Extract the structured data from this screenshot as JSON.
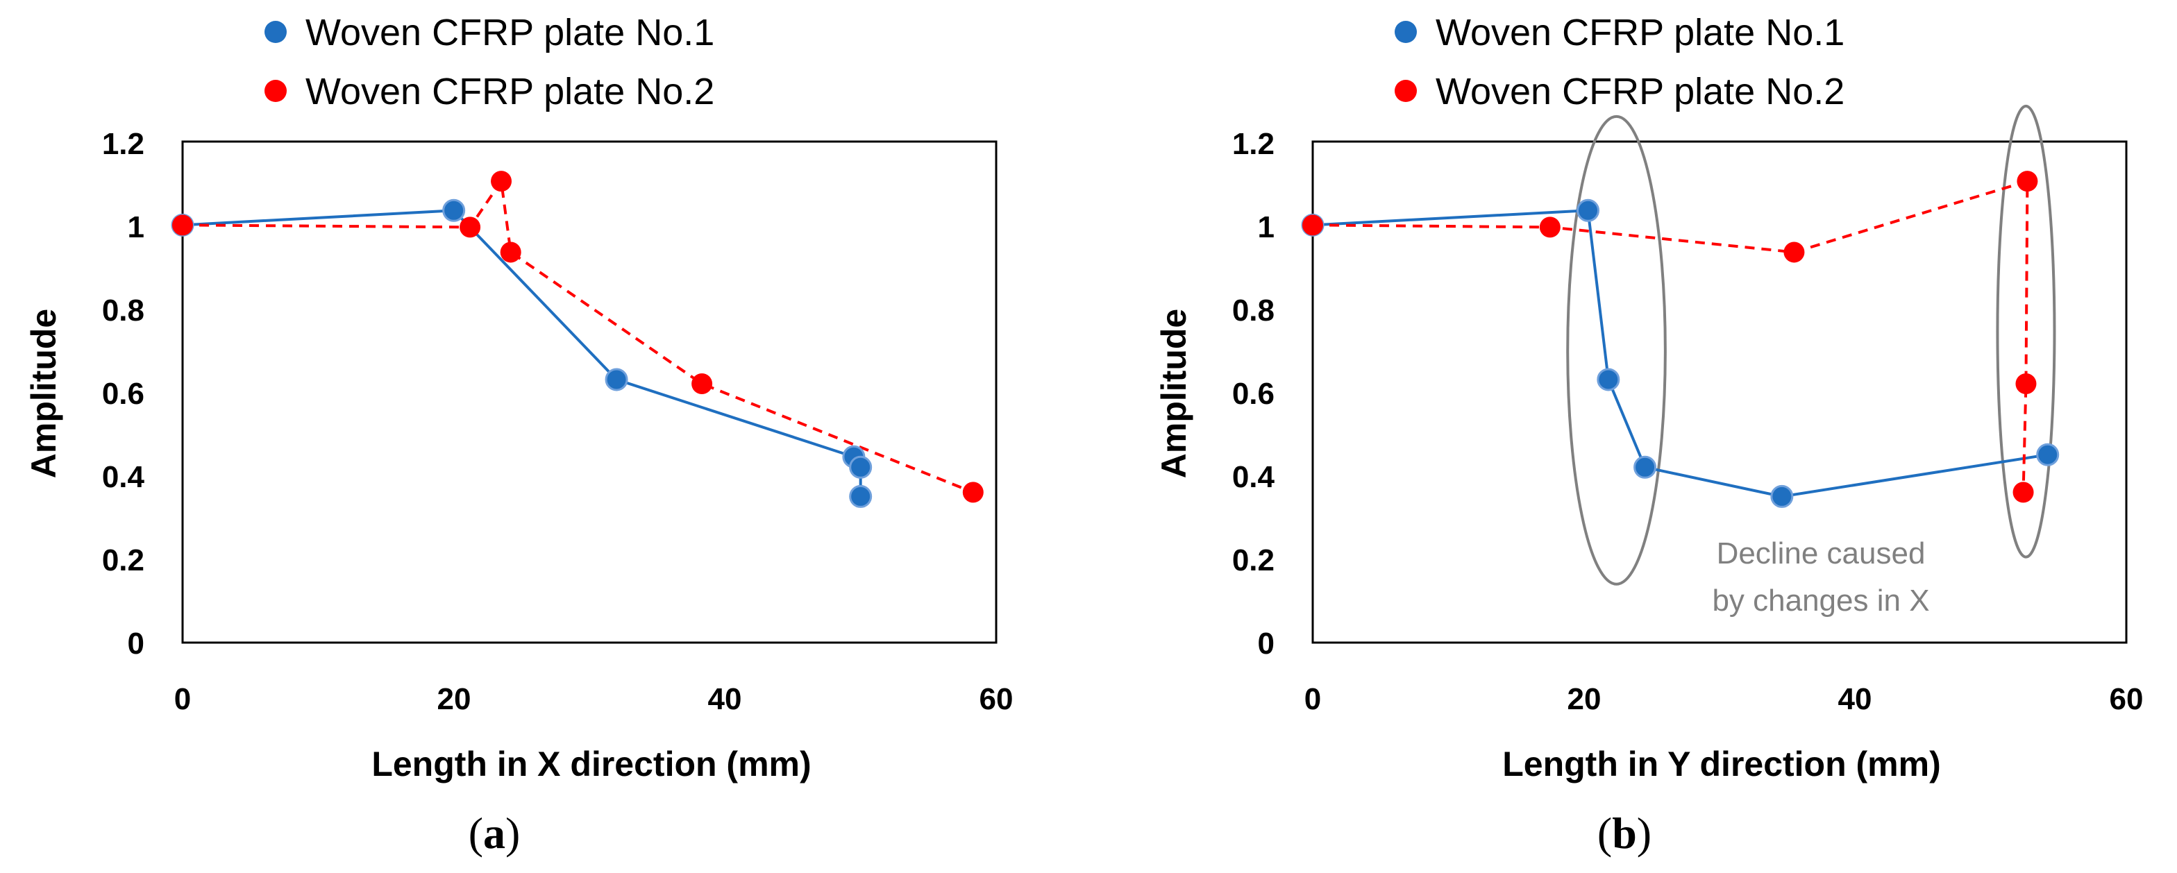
{
  "colors": {
    "series1": "#1F6FC0",
    "series2": "#FF0000",
    "annotation": "#808080"
  },
  "chart_data": [
    {
      "type": "line",
      "panel_label": "a",
      "title": "",
      "xlabel": "Length in X direction (mm)",
      "ylabel": "Amplitude",
      "xlim": [
        0,
        60
      ],
      "ylim": [
        0,
        1.2
      ],
      "x_ticks": [
        "0",
        "20",
        "40",
        "60"
      ],
      "y_ticks": [
        "0",
        "0.2",
        "0.4",
        "0.6",
        "0.8",
        "1",
        "1.2"
      ],
      "legend_position": "top",
      "series": [
        {
          "name": "Woven CFRP plate No.1",
          "line_style": "solid",
          "points": [
            [
              0,
              1.0
            ],
            [
              20,
              1.035
            ],
            [
              32,
              0.63
            ],
            [
              49.5,
              0.445
            ],
            [
              50,
              0.42
            ],
            [
              50,
              0.35
            ]
          ]
        },
        {
          "name": "Woven CFRP plate No.2",
          "line_style": "dashed",
          "points": [
            [
              0,
              1.0
            ],
            [
              21.2,
              0.995
            ],
            [
              23.5,
              1.105
            ],
            [
              24.2,
              0.935
            ],
            [
              38.3,
              0.62
            ],
            [
              58.3,
              0.36
            ]
          ]
        }
      ],
      "annotations": []
    },
    {
      "type": "line",
      "panel_label": "b",
      "title": "",
      "xlabel": "Length in Y direction (mm)",
      "ylabel": "Amplitude",
      "xlim": [
        0,
        60
      ],
      "ylim": [
        0,
        1.2
      ],
      "x_ticks": [
        "0",
        "20",
        "40",
        "60"
      ],
      "y_ticks": [
        "0",
        "0.2",
        "0.4",
        "0.6",
        "0.8",
        "1",
        "1.2"
      ],
      "legend_position": "top",
      "series": [
        {
          "name": "Woven CFRP plate No.1",
          "line_style": "solid",
          "points": [
            [
              0,
              1.0
            ],
            [
              20.3,
              1.035
            ],
            [
              21.8,
              0.63
            ],
            [
              24.5,
              0.42
            ],
            [
              34.6,
              0.35
            ],
            [
              54.2,
              0.45
            ]
          ]
        },
        {
          "name": "Woven CFRP plate No.2",
          "line_style": "dashed",
          "points": [
            [
              0,
              1.0
            ],
            [
              17.5,
              0.995
            ],
            [
              35.5,
              0.935
            ],
            [
              52.7,
              1.105
            ],
            [
              52.6,
              0.62
            ],
            [
              52.4,
              0.36
            ]
          ]
        }
      ],
      "annotations": [
        {
          "label_lines": [
            "Decline caused",
            "by changes in X"
          ],
          "ellipses": [
            {
              "cx": 22.4,
              "cy": 0.7,
              "rx": 3.6,
              "ry": 0.56
            },
            {
              "cx": 52.6,
              "cy": 0.745,
              "rx": 2.1,
              "ry": 0.54
            }
          ]
        }
      ]
    }
  ]
}
